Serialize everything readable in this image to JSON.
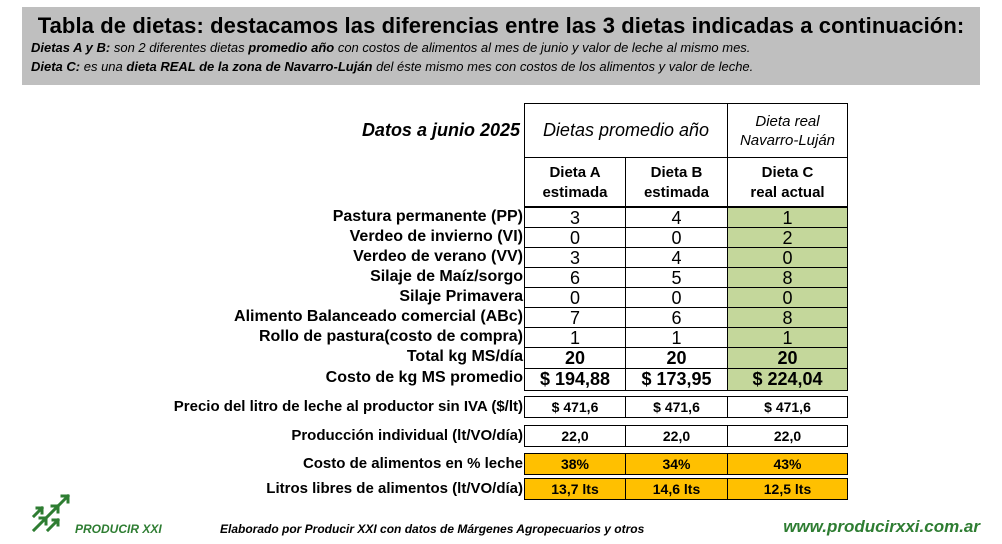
{
  "header": {
    "title": "Tabla de dietas: destacamos las diferencias entre las 3 dietas indicadas a continuación:",
    "line1": {
      "a": "Dietas A y B:",
      "b": " son 2 diferentes dietas ",
      "c": "promedio año",
      "d": " con costos de alimentos al mes de junio y valor de leche al mismo mes."
    },
    "line2": {
      "a": "Dieta C:",
      "b": " es una ",
      "c": "dieta REAL de la zona de Navarro-Luján",
      "d": " del éste mismo mes con costos de los alimentos y valor de leche."
    }
  },
  "table": {
    "date_label": "Datos a junio 2025",
    "group_ab": "Dietas promedio año",
    "group_c": "Dieta real Navarro-Luján",
    "col_a": "Dieta A estimada",
    "col_b": "Dieta B estimada",
    "col_c": "Dieta C real actual",
    "rows": [
      {
        "label": "Pastura permanente (PP)",
        "a": "3",
        "b": "4",
        "c": "1"
      },
      {
        "label": "Verdeo de invierno (VI)",
        "a": "0",
        "b": "0",
        "c": "2"
      },
      {
        "label": "Verdeo de verano (VV)",
        "a": "3",
        "b": "4",
        "c": "0"
      },
      {
        "label": "Silaje de Maíz/sorgo",
        "a": "6",
        "b": "5",
        "c": "8"
      },
      {
        "label": "Silaje Primavera",
        "a": "0",
        "b": "0",
        "c": "0"
      },
      {
        "label": "Alimento Balanceado comercial (ABc)",
        "a": "7",
        "b": "6",
        "c": "8"
      },
      {
        "label": "Rollo de pastura(costo de compra)",
        "a": "1",
        "b": "1",
        "c": "1"
      },
      {
        "label": "Total kg MS/día",
        "a": "20",
        "b": "20",
        "c": "20"
      },
      {
        "label": "Costo de kg MS promedio",
        "a": "$ 194,88",
        "b": "$ 173,95",
        "c": "$ 224,04"
      }
    ],
    "extra": [
      {
        "label": "Precio del litro de leche al productor sin IVA ($/lt)",
        "a": "$ 471,6",
        "b": "$ 471,6",
        "c": "$ 471,6"
      },
      {
        "label": "Producción individual (lt/VO/día)",
        "a": "22,0",
        "b": "22,0",
        "c": "22,0"
      },
      {
        "label": "Costo de alimentos en % leche",
        "a": "38%",
        "b": "34%",
        "c": "43%"
      },
      {
        "label": "Litros libres de alimentos (lt/VO/día)",
        "a": "13,7 lts",
        "b": "14,6 lts",
        "c": "12,5 lts"
      }
    ]
  },
  "footer": {
    "logo": "PRODUCIR XXI",
    "credit": "Elaborado por Producir XXI con datos de Márgenes Agropecuarios y otros",
    "url": "www.producirxxi.com.ar"
  },
  "colors": {
    "header_bg": "#bfbfbf",
    "green": "#c4d79b",
    "orange": "#ffc000",
    "brand": "#2e7d32"
  }
}
